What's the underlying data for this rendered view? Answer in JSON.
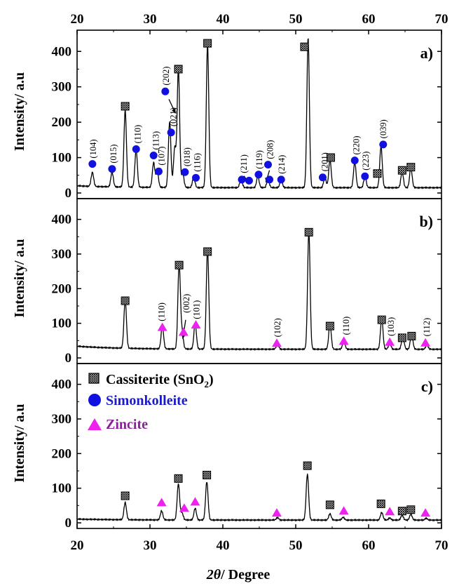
{
  "chart_data": {
    "type": "line",
    "x_range": [
      20,
      70
    ],
    "x_ticks": [
      20,
      30,
      40,
      50,
      60,
      70
    ],
    "x_tick_labels": [
      "20",
      "30",
      "40",
      "50",
      "60",
      "70"
    ],
    "xlabel": "2θ/ Degree",
    "xlabel_parts": {
      "theta": "2θ",
      "rest": "/ Degree"
    },
    "grid": false,
    "colors": {
      "line": "#000000",
      "simonkolleite": "#1010e0",
      "zincite": "#ee22ee",
      "legend_simonkolleite_text": "#1a1acc",
      "legend_zincite_text": "#8a1f9a",
      "cassiterite_text": "#000000"
    },
    "legend": {
      "placement": "top-left of panel c",
      "entries": [
        {
          "marker": "hatched-square",
          "label_main": "Cassiterite (SnO",
          "label_sub": "2",
          "label_end": ")"
        },
        {
          "marker": "circle",
          "label": "Simonkolleite"
        },
        {
          "marker": "triangle",
          "label": "Zincite"
        }
      ]
    },
    "panels": [
      {
        "label": "a)",
        "ylabel": "Intensity/ a.u",
        "ylim": [
          0,
          460
        ],
        "y_ticks": [
          0,
          100,
          200,
          300,
          400
        ],
        "y_tick_labels": [
          "0",
          "100",
          "200",
          "300",
          "400"
        ],
        "baseline": 15,
        "peaks": [
          {
            "x": 22.1,
            "y": 40
          },
          {
            "x": 24.8,
            "y": 42
          },
          {
            "x": 26.6,
            "y": 218
          },
          {
            "x": 28.1,
            "y": 106
          },
          {
            "x": 30.5,
            "y": 70
          },
          {
            "x": 31.0,
            "y": 45
          },
          {
            "x": 32.7,
            "y": 187
          },
          {
            "x": 33.4,
            "y": 112
          },
          {
            "x": 33.9,
            "y": 336
          },
          {
            "x": 34.5,
            "y": 38
          },
          {
            "x": 36.0,
            "y": 30
          },
          {
            "x": 37.9,
            "y": 405
          },
          {
            "x": 42.5,
            "y": 26
          },
          {
            "x": 44.8,
            "y": 32
          },
          {
            "x": 46.2,
            "y": 25
          },
          {
            "x": 48.0,
            "y": 22
          },
          {
            "x": 51.7,
            "y": 425
          },
          {
            "x": 54.0,
            "y": 30
          },
          {
            "x": 54.7,
            "y": 80
          },
          {
            "x": 58.1,
            "y": 72
          },
          {
            "x": 59.5,
            "y": 32
          },
          {
            "x": 61.7,
            "y": 118
          },
          {
            "x": 64.6,
            "y": 46
          },
          {
            "x": 65.8,
            "y": 57
          }
        ],
        "markers": [
          {
            "type": "cassiterite",
            "x": 26.6,
            "y": 245
          },
          {
            "type": "cassiterite",
            "x": 33.9,
            "y": 350
          },
          {
            "type": "cassiterite",
            "x": 37.9,
            "y": 423
          },
          {
            "type": "cassiterite",
            "x": 51.2,
            "y": 413
          },
          {
            "type": "cassiterite",
            "x": 54.8,
            "y": 100
          },
          {
            "type": "cassiterite",
            "x": 61.2,
            "y": 55
          },
          {
            "type": "cassiterite",
            "x": 64.6,
            "y": 64
          },
          {
            "type": "cassiterite",
            "x": 65.8,
            "y": 73
          },
          {
            "type": "simonkolleite",
            "x": 22.1,
            "y": 82
          },
          {
            "type": "simonkolleite",
            "x": 24.8,
            "y": 68
          },
          {
            "type": "simonkolleite",
            "x": 28.1,
            "y": 124
          },
          {
            "type": "simonkolleite",
            "x": 30.5,
            "y": 106
          },
          {
            "type": "simonkolleite",
            "x": 31.2,
            "y": 61
          },
          {
            "type": "simonkolleite",
            "x": 32.1,
            "y": 287
          },
          {
            "type": "simonkolleite",
            "x": 32.9,
            "y": 171
          },
          {
            "type": "simonkolleite",
            "x": 34.8,
            "y": 59
          },
          {
            "type": "simonkolleite",
            "x": 36.3,
            "y": 43
          },
          {
            "type": "simonkolleite",
            "x": 42.6,
            "y": 38
          },
          {
            "type": "simonkolleite",
            "x": 43.6,
            "y": 35
          },
          {
            "type": "simonkolleite",
            "x": 44.9,
            "y": 52
          },
          {
            "type": "simonkolleite",
            "x": 46.2,
            "y": 80
          },
          {
            "type": "simonkolleite",
            "x": 46.4,
            "y": 38
          },
          {
            "type": "simonkolleite",
            "x": 48.0,
            "y": 38
          },
          {
            "type": "simonkolleite",
            "x": 53.7,
            "y": 44
          },
          {
            "type": "simonkolleite",
            "x": 58.1,
            "y": 92
          },
          {
            "type": "simonkolleite",
            "x": 59.5,
            "y": 47
          },
          {
            "type": "simonkolleite",
            "x": 62.0,
            "y": 137
          }
        ],
        "hkl_labels": [
          {
            "text": "(104)",
            "x": 22.2,
            "y": 98
          },
          {
            "text": "(015)",
            "x": 25.0,
            "y": 84
          },
          {
            "text": "(110)",
            "x": 28.3,
            "y": 140
          },
          {
            "text": "(113)",
            "x": 30.8,
            "y": 122
          },
          {
            "text": "(107)",
            "x": 31.6,
            "y": 78
          },
          {
            "text": "(202)",
            "x": 32.2,
            "y": 304
          },
          {
            "text": "(021)",
            "x": 33.2,
            "y": 188
          },
          {
            "text": "(018)",
            "x": 35.1,
            "y": 75
          },
          {
            "text": "(116)",
            "x": 36.5,
            "y": 60
          },
          {
            "text": "(211)",
            "x": 42.9,
            "y": 56
          },
          {
            "text": "(119)",
            "x": 45.0,
            "y": 68
          },
          {
            "text": "(208)",
            "x": 46.5,
            "y": 96
          },
          {
            "text": "(214)",
            "x": 48.1,
            "y": 54
          },
          {
            "text": "(201)",
            "x": 54.0,
            "y": 61
          },
          {
            "text": "(220)",
            "x": 58.3,
            "y": 108
          },
          {
            "text": "(223)",
            "x": 59.6,
            "y": 64
          },
          {
            "text": "(039)",
            "x": 62.0,
            "y": 154
          }
        ],
        "arrows": [
          {
            "from": [
              32.6,
              265
            ],
            "to": [
              33.5,
              225
            ]
          },
          {
            "from": [
              42.9,
              48
            ],
            "to": [
              43.5,
              30
            ]
          },
          {
            "from": [
              46.4,
              64
            ],
            "to": [
              45.9,
              30
            ]
          }
        ]
      },
      {
        "label": "b)",
        "ylabel": "Intensity/ a.u",
        "ylim": [
          0,
          460
        ],
        "y_ticks": [
          0,
          100,
          200,
          300,
          400
        ],
        "y_tick_labels": [
          "0",
          "100",
          "200",
          "300",
          "400"
        ],
        "baseline": 25,
        "peaks": [
          {
            "x": 26.6,
            "y": 142
          },
          {
            "x": 31.7,
            "y": 66
          },
          {
            "x": 34.0,
            "y": 248
          },
          {
            "x": 34.4,
            "y": 48
          },
          {
            "x": 36.2,
            "y": 75
          },
          {
            "x": 37.9,
            "y": 290
          },
          {
            "x": 47.5,
            "y": 14
          },
          {
            "x": 51.8,
            "y": 343
          },
          {
            "x": 54.7,
            "y": 74
          },
          {
            "x": 56.6,
            "y": 25
          },
          {
            "x": 61.8,
            "y": 91
          },
          {
            "x": 62.9,
            "y": 18
          },
          {
            "x": 64.7,
            "y": 40
          },
          {
            "x": 65.9,
            "y": 46
          },
          {
            "x": 68.0,
            "y": 12
          }
        ],
        "markers": [
          {
            "type": "cassiterite",
            "x": 26.6,
            "y": 165
          },
          {
            "type": "cassiterite",
            "x": 34.0,
            "y": 268
          },
          {
            "type": "cassiterite",
            "x": 37.9,
            "y": 307
          },
          {
            "type": "cassiterite",
            "x": 51.8,
            "y": 363
          },
          {
            "type": "cassiterite",
            "x": 54.7,
            "y": 92
          },
          {
            "type": "cassiterite",
            "x": 61.8,
            "y": 110
          },
          {
            "type": "cassiterite",
            "x": 64.6,
            "y": 58
          },
          {
            "type": "cassiterite",
            "x": 65.9,
            "y": 63
          },
          {
            "type": "zincite",
            "x": 31.7,
            "y": 88
          },
          {
            "type": "zincite",
            "x": 34.6,
            "y": 74
          },
          {
            "type": "zincite",
            "x": 36.3,
            "y": 95
          },
          {
            "type": "zincite",
            "x": 47.4,
            "y": 42
          },
          {
            "type": "zincite",
            "x": 56.6,
            "y": 48
          },
          {
            "type": "zincite",
            "x": 62.9,
            "y": 45
          },
          {
            "type": "zincite",
            "x": 67.8,
            "y": 43
          }
        ],
        "hkl_labels": [
          {
            "text": "(110)",
            "x": 31.6,
            "y": 106
          },
          {
            "text": "(002)",
            "x": 35.0,
            "y": 130
          },
          {
            "text": "(101)",
            "x": 36.4,
            "y": 112
          },
          {
            "text": "(102)",
            "x": 47.5,
            "y": 60
          },
          {
            "text": "(110)",
            "x": 56.9,
            "y": 66
          },
          {
            "text": "(103)",
            "x": 63.1,
            "y": 63
          },
          {
            "text": "(112)",
            "x": 68.0,
            "y": 62
          }
        ],
        "arrows": [
          {
            "from": [
              34.9,
              110
            ],
            "to": [
              34.5,
              55
            ]
          }
        ]
      },
      {
        "label": "c)",
        "ylabel": "Intensity/ a.u",
        "ylim": [
          0,
          460
        ],
        "y_ticks": [
          0,
          100,
          200,
          300,
          400
        ],
        "y_tick_labels": [
          "0",
          "100",
          "200",
          "300",
          "400"
        ],
        "baseline": 8,
        "peaks": [
          {
            "x": 26.6,
            "y": 50
          },
          {
            "x": 31.6,
            "y": 26
          },
          {
            "x": 33.9,
            "y": 105
          },
          {
            "x": 34.4,
            "y": 20
          },
          {
            "x": 36.2,
            "y": 34
          },
          {
            "x": 37.8,
            "y": 111
          },
          {
            "x": 47.5,
            "y": 7
          },
          {
            "x": 51.6,
            "y": 133
          },
          {
            "x": 54.7,
            "y": 18
          },
          {
            "x": 56.5,
            "y": 8
          },
          {
            "x": 61.8,
            "y": 22
          },
          {
            "x": 62.9,
            "y": 6
          },
          {
            "x": 64.6,
            "y": 14
          },
          {
            "x": 65.8,
            "y": 17
          },
          {
            "x": 67.9,
            "y": 5
          }
        ],
        "markers": [
          {
            "type": "cassiterite",
            "x": 26.6,
            "y": 78
          },
          {
            "type": "cassiterite",
            "x": 33.9,
            "y": 128
          },
          {
            "type": "cassiterite",
            "x": 37.8,
            "y": 138
          },
          {
            "type": "cassiterite",
            "x": 51.6,
            "y": 165
          },
          {
            "type": "cassiterite",
            "x": 54.7,
            "y": 52
          },
          {
            "type": "cassiterite",
            "x": 61.7,
            "y": 55
          },
          {
            "type": "cassiterite",
            "x": 64.6,
            "y": 34
          },
          {
            "type": "cassiterite",
            "x": 65.8,
            "y": 38
          },
          {
            "type": "zincite",
            "x": 31.6,
            "y": 58
          },
          {
            "type": "zincite",
            "x": 34.7,
            "y": 42
          },
          {
            "type": "zincite",
            "x": 36.2,
            "y": 60
          },
          {
            "type": "zincite",
            "x": 47.4,
            "y": 28
          },
          {
            "type": "zincite",
            "x": 56.6,
            "y": 34
          },
          {
            "type": "zincite",
            "x": 62.9,
            "y": 32
          },
          {
            "type": "zincite",
            "x": 67.8,
            "y": 28
          }
        ],
        "hkl_labels": [],
        "arrows": []
      }
    ]
  }
}
